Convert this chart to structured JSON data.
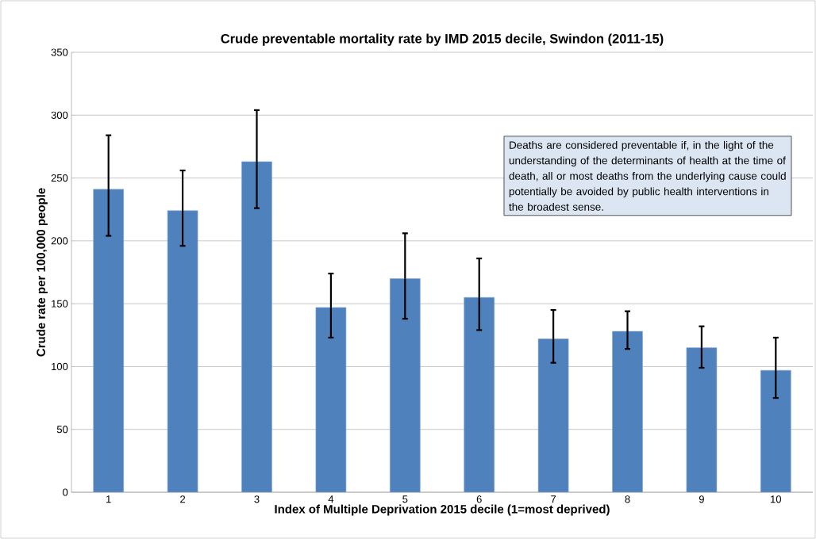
{
  "chart_data": {
    "type": "bar",
    "title": "Crude preventable mortality rate by IMD 2015 decile, Swindon (2011-15)",
    "xlabel": "Index of Multiple Deprivation 2015 decile (1=most deprived)",
    "ylabel": "Crude rate per 100,000 people",
    "categories": [
      "1",
      "2",
      "3",
      "4",
      "5",
      "6",
      "7",
      "8",
      "9",
      "10"
    ],
    "values": [
      241,
      224,
      263,
      147,
      170,
      155,
      122,
      128,
      115,
      97
    ],
    "errors": [
      [
        204,
        284
      ],
      [
        196,
        256
      ],
      [
        226,
        304
      ],
      [
        123,
        174
      ],
      [
        138,
        206
      ],
      [
        129,
        186
      ],
      [
        103,
        145
      ],
      [
        114,
        144
      ],
      [
        99,
        132
      ],
      [
        75,
        123
      ]
    ],
    "color": "#4f81bd",
    "ylim": [
      0,
      350
    ],
    "yticks": [
      0,
      50,
      100,
      150,
      200,
      250,
      300,
      350
    ],
    "grid": "y",
    "annotations": [
      "Deaths are considered preventable if, in the light of the understanding of the determinants of health at the time of death, all or most deaths from the underlying cause could potentially be avoided by public health interventions in the broadest sense."
    ]
  }
}
